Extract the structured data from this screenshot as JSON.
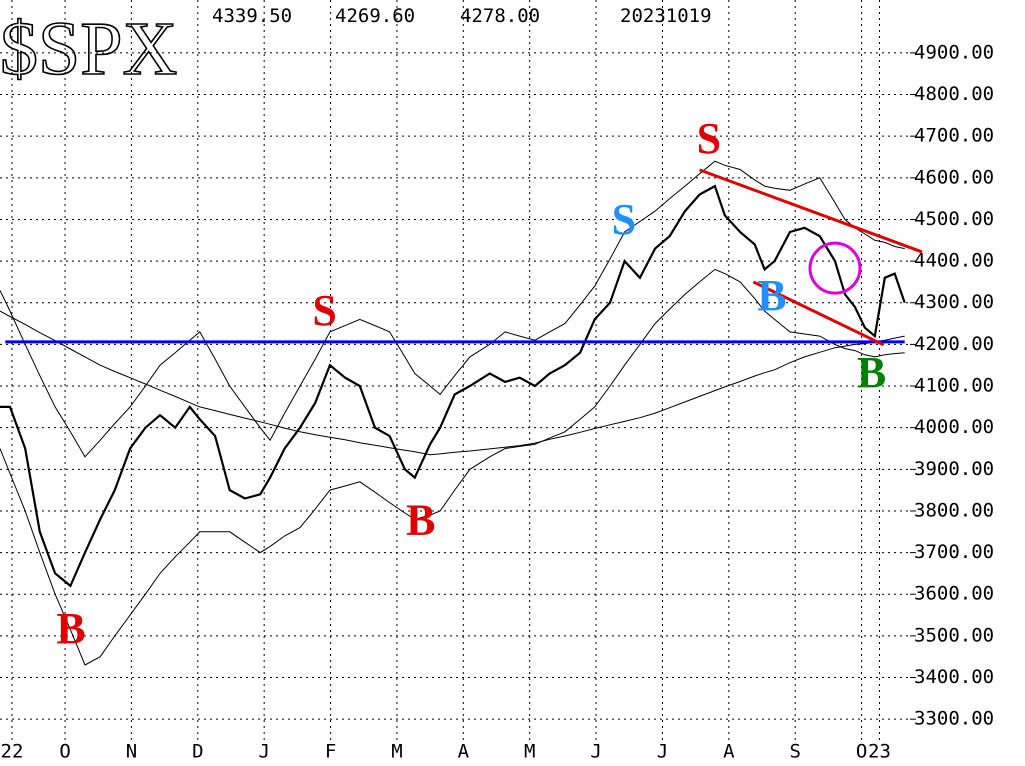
{
  "chart_data": {
    "type": "line",
    "title": "$SPX",
    "header_values": [
      "4339.50",
      "4269.60",
      "4278.00",
      "20231019"
    ],
    "xlim": [
      0.02,
      13.73
    ],
    "ylim": [
      3250,
      5027
    ],
    "grid": true,
    "xticks": [
      {
        "value": 0.2,
        "label": "22"
      },
      {
        "value": 1,
        "label": "O"
      },
      {
        "value": 2,
        "label": "N"
      },
      {
        "value": 3,
        "label": "D"
      },
      {
        "value": 4,
        "label": "J"
      },
      {
        "value": 5,
        "label": "F"
      },
      {
        "value": 6,
        "label": "M"
      },
      {
        "value": 7,
        "label": "A"
      },
      {
        "value": 8,
        "label": "M"
      },
      {
        "value": 9,
        "label": "J"
      },
      {
        "value": 10,
        "label": "J"
      },
      {
        "value": 11,
        "label": "A"
      },
      {
        "value": 12,
        "label": "S"
      },
      {
        "value": 13,
        "label": "O"
      },
      {
        "value": 13.27,
        "label": "23"
      }
    ],
    "yticks": [
      {
        "value": 3300,
        "label": "3300.00"
      },
      {
        "value": 3400,
        "label": "3400.00"
      },
      {
        "value": 3500,
        "label": "3500.00"
      },
      {
        "value": 3600,
        "label": "3600.00"
      },
      {
        "value": 3700,
        "label": "3700.00"
      },
      {
        "value": 3800,
        "label": "3800.00"
      },
      {
        "value": 3900,
        "label": "3900.00"
      },
      {
        "value": 4000,
        "label": "4000.00"
      },
      {
        "value": 4100,
        "label": "4100.00"
      },
      {
        "value": 4200,
        "label": "4200.00"
      },
      {
        "value": 4300,
        "label": "4300.00"
      },
      {
        "value": 4400,
        "label": "4400.00"
      },
      {
        "value": 4500,
        "label": "4500.00"
      },
      {
        "value": 4600,
        "label": "4600.00"
      },
      {
        "value": 4700,
        "label": "4700.00"
      },
      {
        "value": 4800,
        "label": "4800.00"
      },
      {
        "value": 4900,
        "label": "4900.00"
      }
    ],
    "x": [
      0.02,
      0.17,
      0.4,
      0.62,
      0.85,
      1.08,
      1.3,
      1.53,
      1.75,
      1.98,
      2.21,
      2.43,
      2.66,
      2.88,
      3.03,
      3.26,
      3.48,
      3.71,
      3.94,
      4.09,
      4.31,
      4.54,
      4.77,
      4.99,
      5.22,
      5.44,
      5.67,
      5.89,
      6.12,
      6.27,
      6.5,
      6.65,
      6.87,
      7.1,
      7.4,
      7.63,
      7.85,
      8.08,
      8.3,
      8.53,
      8.76,
      8.98,
      9.21,
      9.43,
      9.66,
      9.89,
      10.11,
      10.34,
      10.56,
      10.79,
      10.94,
      11.17,
      11.39,
      11.54,
      11.69,
      11.92,
      12.14,
      12.37,
      12.6,
      12.75,
      12.9,
      13.05,
      13.2,
      13.35,
      13.5,
      13.65
    ],
    "series": [
      {
        "color": "#000000",
        "width": 2.2,
        "values": [
          4050,
          4050,
          3950,
          3750,
          3650,
          3620,
          3700,
          3780,
          3850,
          3950,
          4000,
          4030,
          4000,
          4050,
          4020,
          3980,
          3850,
          3830,
          3840,
          3880,
          3950,
          4000,
          4060,
          4150,
          4120,
          4100,
          4000,
          3980,
          3900,
          3880,
          3960,
          4000,
          4080,
          4100,
          4130,
          4110,
          4120,
          4100,
          4130,
          4150,
          4180,
          4260,
          4300,
          4400,
          4360,
          4430,
          4460,
          4520,
          4560,
          4580,
          4510,
          4470,
          4440,
          4380,
          4400,
          4470,
          4480,
          4460,
          4400,
          4320,
          4290,
          4240,
          4220,
          4360,
          4370,
          4300
        ]
      },
      {
        "color": "#000000",
        "width": 1,
        "values": [
          4330,
          4280,
          4200,
          4125,
          4050,
          3990,
          3930,
          3970,
          4010,
          4050,
          4100,
          4150,
          4180,
          4210,
          4230,
          4165,
          4100,
          4050,
          4000,
          3970,
          4035,
          4100,
          4165,
          4230,
          4245,
          4260,
          4245,
          4230,
          4170,
          4130,
          4100,
          4080,
          4125,
          4170,
          4200,
          4230,
          4220,
          4210,
          4230,
          4250,
          4295,
          4340,
          4405,
          4470,
          4495,
          4520,
          4550,
          4580,
          4610,
          4640,
          4630,
          4620,
          4595,
          4580,
          4575,
          4570,
          4585,
          4600,
          4540,
          4500,
          4480,
          4465,
          4450,
          4445,
          4435,
          4430
        ]
      },
      {
        "color": "#000000",
        "width": 1,
        "values": [
          3950,
          3890,
          3800,
          3700,
          3600,
          3515,
          3430,
          3450,
          3500,
          3550,
          3600,
          3650,
          3690,
          3725,
          3750,
          3750,
          3750,
          3725,
          3700,
          3715,
          3740,
          3760,
          3805,
          3850,
          3860,
          3870,
          3845,
          3820,
          3795,
          3780,
          3790,
          3800,
          3850,
          3900,
          3930,
          3950,
          3955,
          3960,
          3975,
          3990,
          4020,
          4050,
          4100,
          4150,
          4200,
          4250,
          4285,
          4320,
          4350,
          4380,
          4370,
          4350,
          4310,
          4280,
          4260,
          4230,
          4225,
          4220,
          4200,
          4190,
          4185,
          4175,
          4170,
          4175,
          4178,
          4180
        ]
      },
      {
        "color": "#000000",
        "width": 1,
        "values": [
          4280,
          4267,
          4248,
          4228,
          4209,
          4189,
          4170,
          4150,
          4135,
          4120,
          4105,
          4090,
          4075,
          4060,
          4050,
          4041,
          4032,
          4023,
          4014,
          4008,
          3999,
          3990,
          3983,
          3977,
          3971,
          3964,
          3958,
          3952,
          3946,
          3942,
          3935,
          3937,
          3941,
          3944,
          3949,
          3953,
          3957,
          3963,
          3972,
          3980,
          3989,
          3998,
          4007,
          4015,
          4024,
          4035,
          4048,
          4062,
          4075,
          4089,
          4098,
          4111,
          4124,
          4132,
          4139,
          4156,
          4170,
          4181,
          4192,
          4196,
          4200,
          4202,
          4206,
          4210,
          4215,
          4220
        ]
      }
    ],
    "lines": [
      {
        "color": "#0000ee",
        "x": [
          0.1,
          13.65
        ],
        "y": [
          4206,
          4206
        ]
      },
      {
        "color": "#e00000",
        "x": [
          10.56,
          13.91
        ],
        "y": [
          4619,
          4422
        ]
      },
      {
        "color": "#e00000",
        "x": [
          11.37,
          13.33
        ],
        "y": [
          4350,
          4199
        ]
      }
    ],
    "circles": [
      {
        "color": "#dd00dd",
        "x": 12.6,
        "y": 4383
      }
    ],
    "annotations": [
      {
        "text": "S",
        "x": 4.91,
        "y": 4271,
        "color": "#e00000"
      },
      {
        "text": "S",
        "x": 10.7,
        "y": 4684,
        "color": "#e00000"
      },
      {
        "text": "S",
        "x": 9.42,
        "y": 4489,
        "color": "#1e90ff"
      },
      {
        "text": "B",
        "x": 1.09,
        "y": 3507,
        "color": "#e00000"
      },
      {
        "text": "B",
        "x": 6.36,
        "y": 3768,
        "color": "#e00000"
      },
      {
        "text": "B",
        "x": 11.65,
        "y": 4307,
        "color": "#1e90ff"
      },
      {
        "text": "B",
        "x": 13.15,
        "y": 4122,
        "color": "#008000"
      }
    ]
  }
}
